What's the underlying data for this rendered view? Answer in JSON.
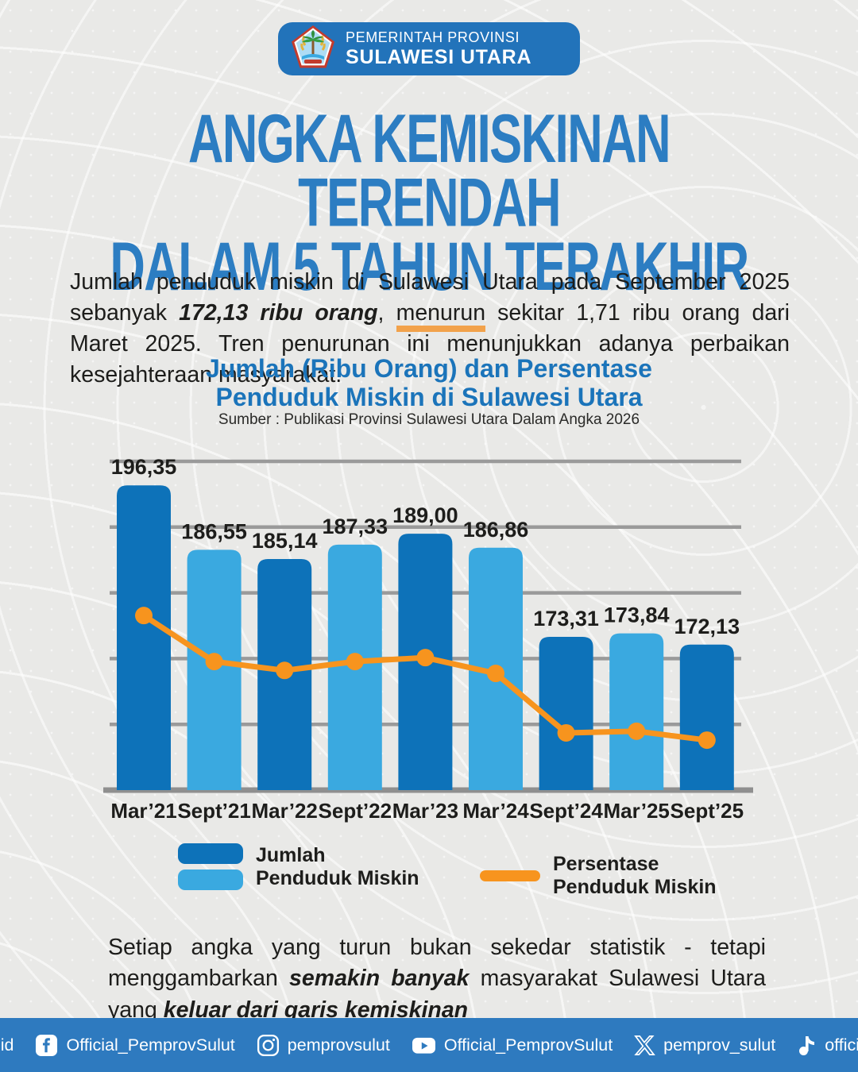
{
  "header": {
    "org_line1": "PEMERINTAH PROVINSI",
    "org_line2": "SULAWESI UTARA",
    "logo": "sulawesi-utara-provincial-seal"
  },
  "title": {
    "line1": "ANGKA KEMISKINAN TERENDAH",
    "line2": "DALAM 5 TAHUN TERAKHIR"
  },
  "intro_paragraph": {
    "parts": [
      {
        "t": "Jumlah penduduk miskin di Sulawesi Utara pada September 2025 sebanyak "
      },
      {
        "t": "172,13 ribu orang",
        "b": true,
        "i": true
      },
      {
        "t": ", "
      },
      {
        "t": "menurun",
        "u": true
      },
      {
        "t": " sekitar 1,71 ribu orang dari Maret 2025. Tren penurunan ini menunjukkan adanya perbaikan kesejahteraan masyarakat."
      }
    ]
  },
  "chart": {
    "title_line1": "Jumlah (Ribu Orang) dan Persentase",
    "title_line2": "Penduduk Miskin di Sulawesi Utara",
    "source": "Sumber : Publikasi Provinsi Sulawesi Utara Dalam Angka 2026"
  },
  "chart_data": {
    "type": "bar",
    "combo": "bar+line",
    "title": "Jumlah (Ribu Orang) dan Persentase Penduduk Miskin di Sulawesi Utara",
    "source": "Sumber : Publikasi Provinsi Sulawesi Utara Dalam Angka 2026",
    "categories": [
      "Mar’21",
      "Sept’21",
      "Mar’22",
      "Sept’22",
      "Mar’23",
      "Mar’24",
      "Sept’24",
      "Mar’25",
      "Sept’25"
    ],
    "series": [
      {
        "name": "Jumlah Penduduk Miskin",
        "type": "bar",
        "unit": "ribu orang",
        "values": [
          196.35,
          186.55,
          185.14,
          187.33,
          189.0,
          186.86,
          173.31,
          173.84,
          172.13
        ],
        "value_labels": [
          "196,35",
          "186,55",
          "185,14",
          "187,33",
          "189,00",
          "186,86",
          "173,31",
          "173,84",
          "172,13"
        ]
      },
      {
        "name": "Persentase Penduduk Miskin",
        "type": "line",
        "value_labels_visible": false,
        "plot_y_fraction": [
          0.469,
          0.609,
          0.636,
          0.609,
          0.597,
          0.645,
          0.826,
          0.821,
          0.848
        ]
      }
    ],
    "xlabel": "",
    "ylabel": "",
    "ylim": [
      150,
      200
    ],
    "gridline_step": 10,
    "grid": true,
    "legend_position": "bottom"
  },
  "legend": {
    "bars_line1": "Jumlah",
    "bars_line2": "Penduduk Miskin",
    "line_line1": "Persentase",
    "line_line2": "Penduduk Miskin"
  },
  "closing_paragraph": {
    "parts": [
      {
        "t": "Setiap angka yang turun bukan sekedar statistik - tetapi menggambarkan "
      },
      {
        "t": "semakin banyak",
        "b": true,
        "i": true
      },
      {
        "t": " masyarakat Sulawesi Utara yang "
      },
      {
        "t": "keluar dari garis kemiskinan",
        "b": true,
        "i": true
      }
    ]
  },
  "footer": {
    "items": [
      {
        "icon": "globe-icon",
        "label": "sulutprov.go.id"
      },
      {
        "icon": "facebook-icon",
        "label": "Official_PemprovSulut"
      },
      {
        "icon": "instagram-icon",
        "label": "pemprovsulut"
      },
      {
        "icon": "youtube-icon",
        "label": "Official_PemprovSulut"
      },
      {
        "icon": "x-icon",
        "label": "pemprov_sulut"
      },
      {
        "icon": "tiktok-icon",
        "label": "official_pemprovsulut"
      }
    ]
  },
  "colors": {
    "bar_dark": "#0D72B9",
    "bar_light": "#3AA9E0",
    "orange": "#F7941E",
    "title_blue": "#2C7DC2",
    "chart_title_blue": "#1B74BA",
    "badge_blue": "#2273BA",
    "footer_blue": "#2E7ABF",
    "grid_gray": "#9A9A9A",
    "baseline_gray": "#8F8F8F",
    "text_dark": "#1D1D1B",
    "underline_orange": "#F2A24B",
    "background": "#E9E9E7"
  }
}
